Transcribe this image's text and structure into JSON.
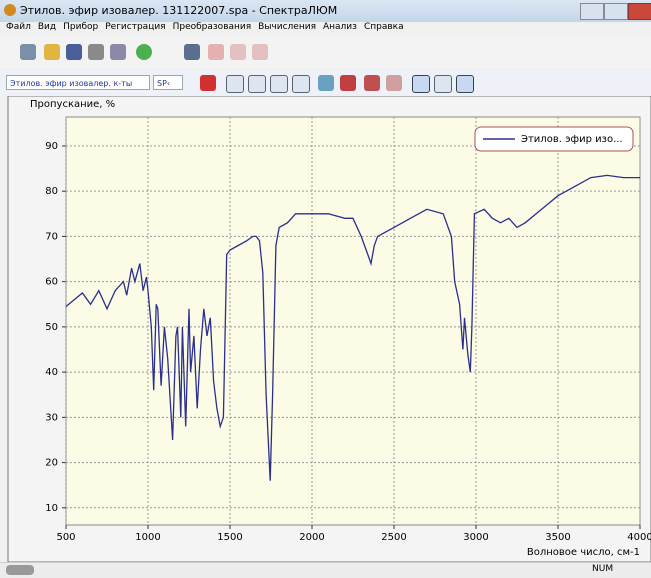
{
  "window": {
    "title": "Этилов. эфир изовалер. 131122007.spa - СпектраЛЮМ",
    "menu": [
      "Файл",
      "Вид",
      "Прибор",
      "Регистрация",
      "Преобразования",
      "Вычисления",
      "Анализ",
      "Справка"
    ],
    "spectrum_select": "Этилов. эфир изовалер. к-ты",
    "mode_select": "SP‹",
    "status": "NUM"
  },
  "chart_data": {
    "type": "line",
    "y_label": "Пропускание, %",
    "x_label": "Волновое число, см-1",
    "xlim": [
      500,
      4000
    ],
    "ylim": [
      6.2,
      96.4
    ],
    "xticks": [
      500,
      1000,
      1500,
      2000,
      2500,
      3000,
      3500,
      4000
    ],
    "yticks": [
      10,
      20,
      30,
      40,
      50,
      60,
      70,
      80,
      90
    ],
    "grid": true,
    "legend": "top-right",
    "background": "#fbfbe6",
    "x": [
      500,
      550,
      600,
      650,
      700,
      750,
      800,
      850,
      870,
      900,
      920,
      950,
      970,
      990,
      1000,
      1020,
      1035,
      1050,
      1060,
      1080,
      1100,
      1120,
      1150,
      1170,
      1180,
      1200,
      1210,
      1230,
      1250,
      1260,
      1280,
      1300,
      1320,
      1340,
      1360,
      1380,
      1400,
      1420,
      1440,
      1460,
      1480,
      1500,
      1550,
      1600,
      1640,
      1660,
      1680,
      1700,
      1720,
      1745,
      1760,
      1780,
      1800,
      1850,
      1900,
      2000,
      2100,
      2200,
      2250,
      2300,
      2340,
      2360,
      2380,
      2400,
      2450,
      2500,
      2600,
      2700,
      2800,
      2850,
      2870,
      2900,
      2920,
      2930,
      2950,
      2965,
      2975,
      2990,
      3050,
      3100,
      3150,
      3200,
      3250,
      3300,
      3400,
      3500,
      3550,
      3600,
      3700,
      3800,
      3900,
      4000
    ],
    "series": [
      {
        "name": "Этилов. эфир изо...",
        "color": "#2b2f8e",
        "values": [
          54.5,
          56,
          57.5,
          55,
          58,
          54,
          58,
          60,
          57,
          63,
          60,
          64,
          58,
          61,
          58,
          50,
          36,
          55,
          54,
          37,
          50,
          43,
          25,
          48,
          50,
          30,
          50,
          28,
          54,
          40,
          48,
          32,
          45,
          54,
          48,
          52,
          38,
          32,
          28,
          30,
          66,
          67,
          68,
          69,
          70,
          70,
          69,
          62,
          35,
          16,
          35,
          68,
          72,
          73,
          75,
          75,
          75,
          74,
          74,
          70,
          66,
          64,
          68,
          70,
          71,
          72,
          74,
          76,
          75,
          70,
          60,
          55,
          45,
          52,
          44,
          40,
          50,
          75,
          76,
          74,
          73,
          74,
          72,
          73,
          76,
          79,
          80,
          81,
          83,
          83.5,
          83,
          83
        ]
      }
    ]
  }
}
